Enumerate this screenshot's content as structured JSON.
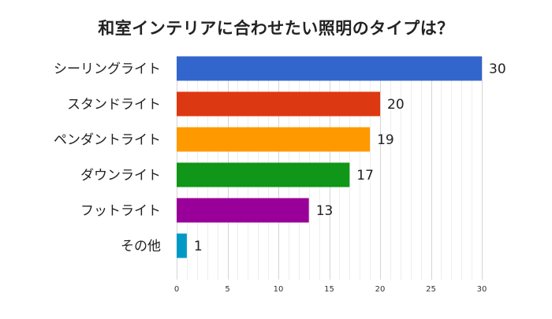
{
  "chart_data": {
    "type": "bar",
    "orientation": "horizontal",
    "title": "和室インテリアに合わせたい照明のタイプは？",
    "categories": [
      "シーリングライト",
      "スタンドライト",
      "ペンダントライト",
      "ダウンライト",
      "フットライト",
      "その他"
    ],
    "values": [
      30,
      20,
      19,
      17,
      13,
      1
    ],
    "colors": [
      "#3366cc",
      "#dc3912",
      "#ff9900",
      "#109618",
      "#990099",
      "#0099c6"
    ],
    "xlim": [
      0,
      30
    ],
    "x_ticks": [
      0,
      5,
      10,
      15,
      20,
      25,
      30
    ],
    "minor_grid_step": 1,
    "data_labels": true,
    "legend": "none",
    "grid": true
  }
}
